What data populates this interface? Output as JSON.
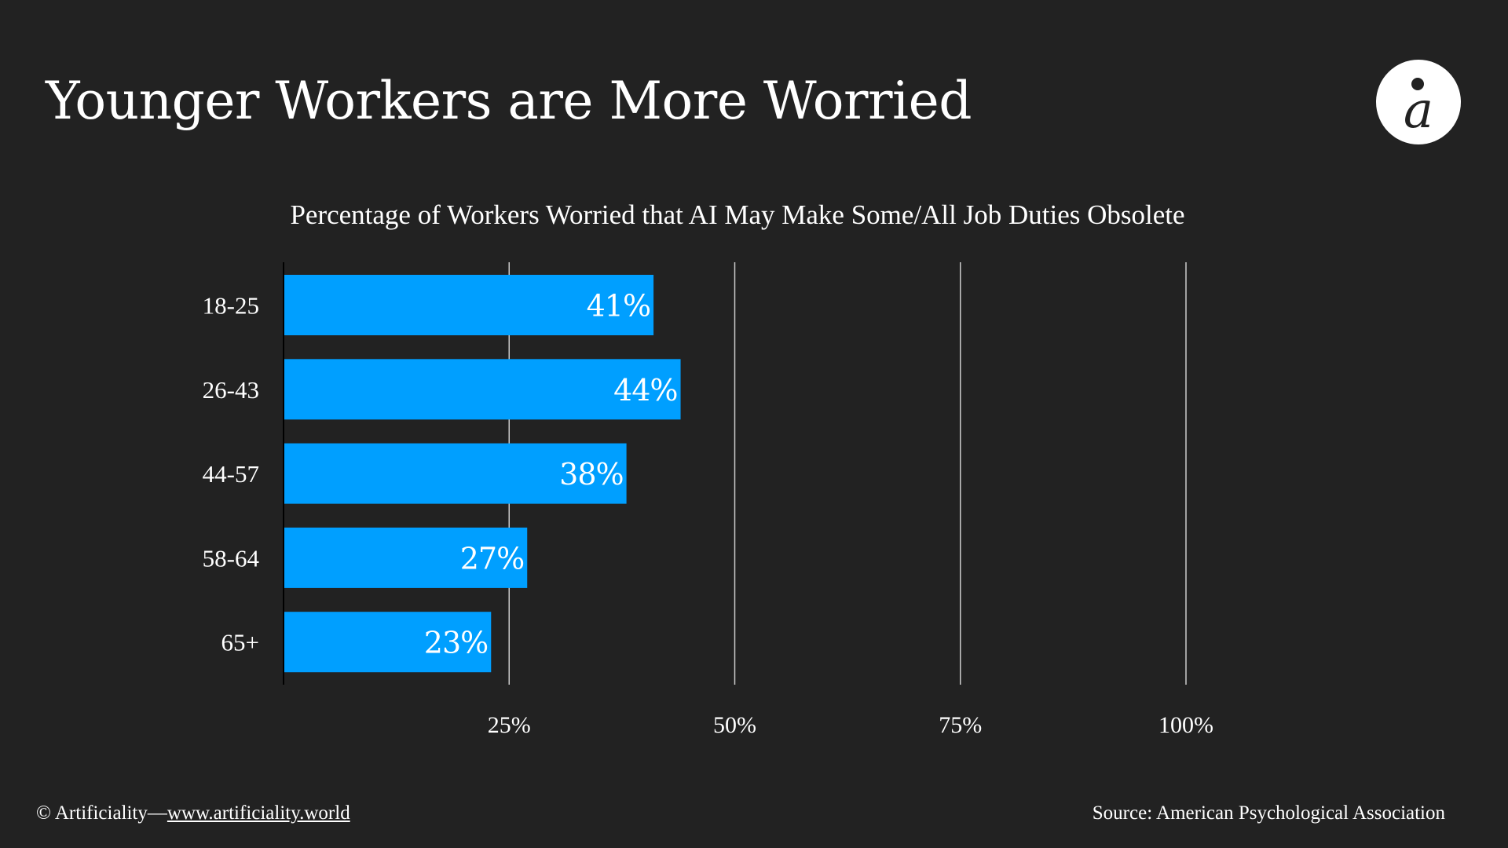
{
  "header": {
    "title": "Younger Workers are More Worried",
    "logo_icon": "artificiality-logo-icon"
  },
  "colors": {
    "background": "#222222",
    "bar": "#009fff",
    "text": "#ffffff",
    "gridline": "#cccccc",
    "axis": "#000000"
  },
  "chart_data": {
    "type": "bar",
    "orientation": "horizontal",
    "title": "Percentage of Workers Worried that AI May Make Some/All Job Duties Obsolete",
    "xlabel": "",
    "ylabel": "",
    "categories": [
      "18-25",
      "26-43",
      "44-57",
      "58-64",
      "65+"
    ],
    "values": [
      41,
      44,
      38,
      27,
      23
    ],
    "data_labels": [
      "41%",
      "44%",
      "38%",
      "27%",
      "23%"
    ],
    "unit": "%",
    "xlim": [
      0,
      100
    ],
    "xticks": [
      25,
      50,
      75,
      100
    ],
    "xtick_labels": [
      "25%",
      "50%",
      "75%",
      "100%"
    ],
    "grid": "vertical",
    "legend": "none"
  },
  "footer": {
    "copyright": "© Artificiality—",
    "link_text": "www.artificiality.world",
    "source": "Source: American Psychological Association"
  }
}
